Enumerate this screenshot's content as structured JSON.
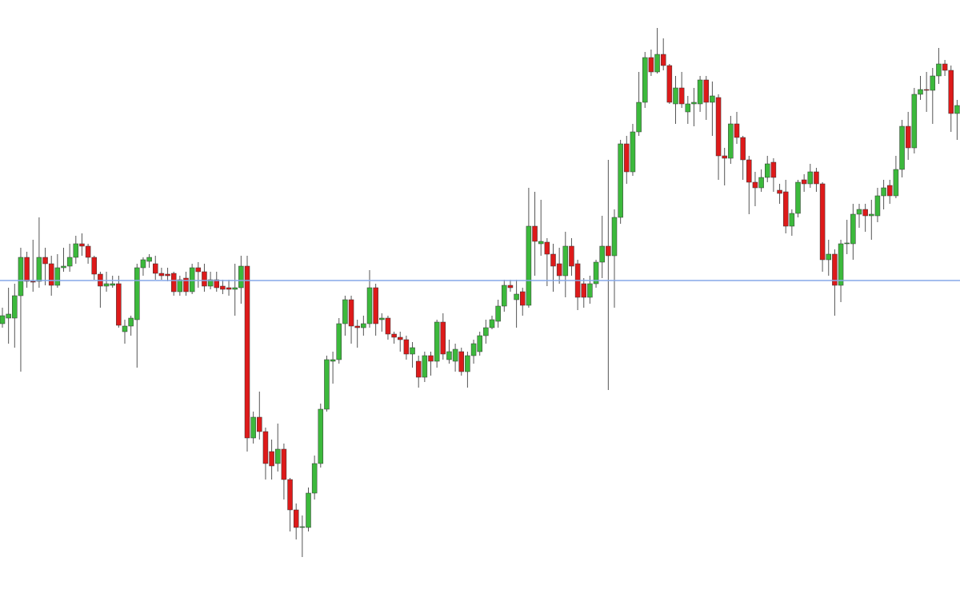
{
  "chart_data": {
    "type": "candlestick",
    "up_color": "#3cb93c",
    "down_color": "#dd1a1a",
    "wick_color": "#555555",
    "hline": {
      "value": 396,
      "color": "#86a9e8"
    },
    "ylim": [
      0,
      747
    ],
    "open": [
      342,
      349,
      349,
      377,
      425,
      395,
      395,
      425,
      417,
      390,
      412,
      414,
      425,
      442,
      439,
      425,
      404,
      389,
      390,
      392,
      332,
      339,
      347,
      412,
      420,
      417,
      405,
      404,
      405,
      382,
      399,
      382,
      412,
      407,
      389,
      397,
      389,
      387,
      385,
      387,
      414,
      199,
      225,
      207,
      182,
      167,
      185,
      147,
      109,
      87,
      87,
      130,
      167,
      235,
      295,
      297,
      342,
      372,
      339,
      337,
      342,
      387,
      347,
      349,
      329,
      325,
      322,
      304,
      295,
      275,
      302,
      295,
      344,
      297,
      295,
      307,
      282,
      302,
      307,
      327,
      337,
      345,
      364,
      390,
      372,
      382,
      365,
      464,
      442,
      444,
      429,
      417,
      402,
      439,
      417,
      392,
      375,
      392,
      419,
      439,
      427,
      475,
      567,
      532,
      582,
      619,
      675,
      657,
      679,
      665,
      617,
      637,
      607,
      617,
      617,
      647,
      619,
      625,
      552,
      549,
      592,
      575,
      547,
      519,
      512,
      525,
      544,
      509,
      507,
      464,
      480,
      522,
      517,
      532,
      517,
      422,
      429,
      390,
      442,
      442,
      479,
      485,
      477,
      477,
      502,
      515,
      502,
      535,
      589,
      562,
      629,
      635,
      634,
      652,
      667,
      659,
      605
    ],
    "high": [
      362,
      387,
      392,
      437,
      432,
      447,
      475,
      437,
      427,
      429,
      437,
      442,
      452,
      455,
      442,
      427,
      407,
      407,
      402,
      402,
      347,
      352,
      417,
      425,
      429,
      427,
      412,
      412,
      407,
      402,
      407,
      417,
      419,
      417,
      407,
      407,
      397,
      397,
      417,
      427,
      427,
      232,
      257,
      212,
      197,
      217,
      192,
      149,
      117,
      102,
      137,
      177,
      242,
      302,
      307,
      349,
      377,
      377,
      347,
      352,
      409,
      392,
      355,
      352,
      332,
      332,
      327,
      319,
      302,
      307,
      307,
      347,
      355,
      322,
      317,
      312,
      307,
      322,
      332,
      347,
      352,
      372,
      397,
      397,
      397,
      387,
      512,
      507,
      497,
      449,
      442,
      437,
      457,
      449,
      422,
      399,
      402,
      422,
      477,
      547,
      485,
      572,
      577,
      592,
      657,
      682,
      685,
      712,
      699,
      667,
      652,
      657,
      627,
      637,
      652,
      652,
      645,
      629,
      562,
      602,
      607,
      577,
      552,
      532,
      535,
      552,
      549,
      517,
      522,
      485,
      522,
      529,
      542,
      537,
      519,
      447,
      435,
      447,
      472,
      492,
      492,
      492,
      497,
      512,
      522,
      522,
      552,
      597,
      607,
      637,
      652,
      657,
      662,
      687,
      672,
      665,
      622
    ],
    "low": [
      337,
      317,
      312,
      282,
      387,
      382,
      387,
      390,
      377,
      387,
      407,
      407,
      417,
      427,
      417,
      397,
      362,
      382,
      387,
      337,
      317,
      327,
      287,
      402,
      412,
      397,
      397,
      395,
      377,
      377,
      377,
      379,
      387,
      382,
      385,
      382,
      379,
      377,
      352,
      367,
      182,
      192,
      197,
      147,
      147,
      157,
      122,
      82,
      72,
      50,
      82,
      122,
      162,
      232,
      267,
      292,
      327,
      317,
      312,
      327,
      337,
      327,
      332,
      322,
      317,
      307,
      297,
      287,
      262,
      269,
      277,
      287,
      297,
      292,
      282,
      277,
      262,
      292,
      302,
      317,
      335,
      337,
      357,
      382,
      337,
      352,
      362,
      402,
      427,
      389,
      382,
      392,
      375,
      402,
      359,
      362,
      367,
      387,
      399,
      259,
      362,
      467,
      517,
      527,
      577,
      612,
      652,
      655,
      659,
      617,
      592,
      612,
      592,
      589,
      607,
      597,
      577,
      522,
      515,
      542,
      567,
      522,
      479,
      489,
      507,
      519,
      507,
      492,
      455,
      452,
      475,
      507,
      512,
      507,
      407,
      402,
      352,
      369,
      429,
      422,
      462,
      457,
      447,
      469,
      485,
      492,
      499,
      525,
      547,
      555,
      622,
      607,
      592,
      642,
      652,
      582,
      572
    ],
    "close": [
      352,
      354,
      377,
      425,
      395,
      394,
      425,
      417,
      390,
      412,
      414,
      425,
      442,
      439,
      425,
      404,
      389,
      392,
      392,
      340,
      339,
      349,
      412,
      422,
      425,
      405,
      402,
      402,
      382,
      397,
      382,
      412,
      407,
      389,
      397,
      387,
      385,
      385,
      387,
      414,
      199,
      225,
      207,
      167,
      164,
      185,
      147,
      109,
      87,
      88,
      130,
      167,
      235,
      297,
      297,
      342,
      372,
      339,
      337,
      342,
      387,
      342,
      349,
      329,
      325,
      322,
      304,
      312,
      275,
      302,
      295,
      344,
      304,
      307,
      310,
      282,
      302,
      317,
      327,
      337,
      347,
      364,
      390,
      387,
      379,
      365,
      464,
      445,
      445,
      429,
      414,
      402,
      439,
      414,
      375,
      375,
      392,
      419,
      439,
      427,
      475,
      567,
      532,
      582,
      619,
      675,
      657,
      679,
      665,
      619,
      637,
      617,
      617,
      619,
      647,
      619,
      627,
      552,
      549,
      592,
      575,
      547,
      519,
      512,
      525,
      542,
      525,
      505,
      464,
      480,
      519,
      517,
      532,
      517,
      422,
      429,
      390,
      442,
      443,
      479,
      485,
      477,
      479,
      502,
      512,
      502,
      535,
      589,
      562,
      629,
      635,
      634,
      652,
      667,
      659,
      605,
      615
    ]
  }
}
